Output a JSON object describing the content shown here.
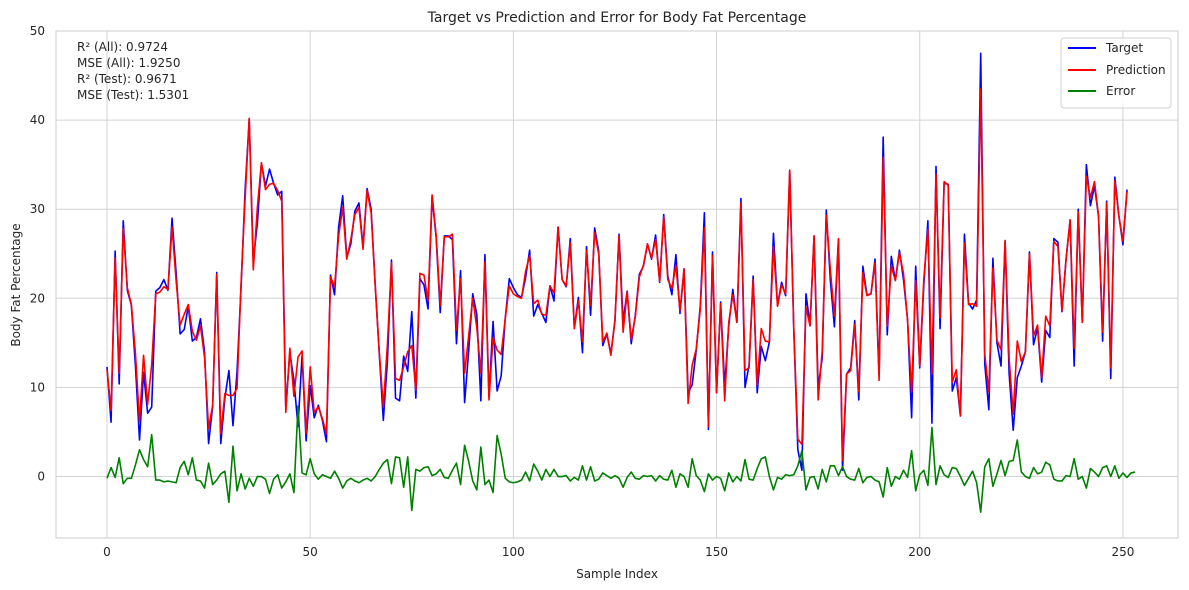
{
  "chart_data": {
    "type": "line",
    "title": "Target vs Prediction and Error for Body Fat Percentage",
    "xlabel": "Sample Index",
    "ylabel": "Body Fat Percentage",
    "xlim": [
      -12.55,
      263.55
    ],
    "ylim": [
      -6.9,
      50
    ],
    "xticks": [
      0,
      50,
      100,
      150,
      200,
      250
    ],
    "yticks": [
      0,
      10,
      20,
      30,
      40,
      50
    ],
    "grid": true,
    "legend_position": "top-right",
    "stats": [
      "R² (All): 0.9724",
      "MSE (All): 1.9250",
      "R² (Test): 0.9671",
      "MSE (Test): 1.5301"
    ],
    "x_start": 0,
    "series": [
      {
        "name": "Target",
        "color": "#0000ff",
        "values": [
          12.3,
          6.1,
          25.3,
          10.4,
          28.7,
          20.9,
          19.2,
          12.4,
          4.1,
          11.7,
          7.1,
          7.8,
          20.8,
          21.2,
          22.1,
          20.9,
          29.0,
          22.9,
          16.0,
          16.5,
          19.1,
          15.2,
          15.6,
          17.7,
          14.0,
          3.7,
          7.9,
          22.9,
          3.7,
          8.8,
          11.9,
          5.7,
          11.8,
          21.3,
          32.3,
          40.1,
          24.2,
          28.4,
          35.2,
          32.6,
          34.5,
          32.9,
          31.6,
          32.0,
          7.7,
          13.9,
          10.8,
          5.6,
          13.6,
          4.0,
          10.2,
          6.6,
          8.0,
          6.3,
          3.9,
          22.6,
          20.4,
          28.0,
          31.5,
          24.6,
          26.1,
          29.8,
          30.7,
          25.8,
          32.3,
          30.0,
          21.5,
          13.8,
          6.3,
          12.9,
          24.3,
          8.8,
          8.5,
          13.5,
          11.8,
          18.5,
          8.8,
          22.2,
          21.5,
          18.8,
          31.4,
          26.8,
          18.4,
          27.0,
          27.0,
          26.6,
          14.9,
          23.1,
          8.3,
          14.1,
          20.5,
          18.2,
          8.5,
          24.9,
          9.0,
          17.4,
          9.6,
          11.3,
          17.8,
          22.2,
          21.2,
          20.4,
          20.1,
          22.3,
          25.4,
          18.0,
          19.3,
          18.3,
          17.3,
          21.4,
          19.7,
          28.0,
          22.1,
          21.3,
          26.7,
          16.7,
          20.1,
          13.9,
          25.8,
          18.1,
          27.9,
          25.3,
          14.7,
          16.0,
          13.8,
          17.5,
          27.2,
          17.4,
          20.8,
          14.9,
          18.1,
          22.7,
          23.6,
          26.1,
          24.4,
          27.1,
          21.8,
          29.4,
          22.5,
          20.4,
          24.9,
          18.3,
          23.3,
          9.4,
          10.3,
          14.2,
          19.2,
          29.6,
          5.3,
          25.2,
          9.4,
          19.6,
          10.1,
          16.9,
          21.0,
          17.3,
          31.2,
          10.0,
          12.5,
          22.5,
          9.4,
          14.6,
          13.0,
          15.1,
          27.3,
          19.2,
          21.8,
          20.3,
          34.3,
          16.5,
          3.0,
          0.7,
          20.5,
          17.0,
          27.0,
          10.0,
          13.3,
          29.9,
          22.0,
          16.8,
          26.6,
          0.7,
          11.5,
          12.2,
          17.5,
          8.6,
          23.6,
          20.4,
          20.5,
          24.4,
          11.4,
          38.1,
          15.9,
          24.7,
          22.0,
          25.4,
          22.1,
          17.6,
          6.6,
          23.6,
          12.2,
          21.5,
          28.7,
          6.0,
          34.8,
          16.6,
          32.9,
          32.8,
          9.6,
          11.1,
          6.8,
          27.2,
          19.5,
          18.8,
          19.8,
          47.5,
          12.6,
          7.5,
          24.5,
          15.0,
          12.4,
          26.4,
          11.5,
          5.2,
          11.1,
          12.4,
          14.0,
          25.2,
          14.8,
          16.7,
          10.6,
          16.4,
          15.6,
          26.7,
          26.3,
          18.5,
          24.4,
          28.8,
          12.4,
          30.0,
          17.3,
          35.0,
          30.4,
          32.6,
          29.2,
          15.2,
          30.9,
          11.0,
          33.6,
          29.3,
          26.0,
          32.2
        ]
      },
      {
        "name": "Prediction",
        "color": "#ff0000",
        "values": [
          12.0,
          7.4,
          24.5,
          11.6,
          27.8,
          21.2,
          19.3,
          13.8,
          6.2,
          13.6,
          8.1,
          12.6,
          20.5,
          20.7,
          21.3,
          21.0,
          28.0,
          22.0,
          17.0,
          18.2,
          19.3,
          16.3,
          15.3,
          16.9,
          13.4,
          5.4,
          8.0,
          22.7,
          4.8,
          9.3,
          9.1,
          9.1,
          9.9,
          21.8,
          31.3,
          40.2,
          23.2,
          30.2,
          35.2,
          32.2,
          32.8,
          32.9,
          32.1,
          30.9,
          7.2,
          14.4,
          9.0,
          13.4,
          14.1,
          4.8,
          12.3,
          7.2,
          7.8,
          6.5,
          4.8,
          22.4,
          21.3,
          27.0,
          30.2,
          24.4,
          26.6,
          29.4,
          30.2,
          25.5,
          32.1,
          29.6,
          21.4,
          14.0,
          7.8,
          14.8,
          24.0,
          11.0,
          10.8,
          12.3,
          14.0,
          14.7,
          9.7,
          22.8,
          22.6,
          19.7,
          31.6,
          27.1,
          19.2,
          26.9,
          26.9,
          27.2,
          16.4,
          22.2,
          11.6,
          15.8,
          20.0,
          16.7,
          11.6,
          24.1,
          8.6,
          15.6,
          14.2,
          13.7,
          17.7,
          21.4,
          20.5,
          20.2,
          20.0,
          23.0,
          24.8,
          19.4,
          19.8,
          18.2,
          18.1,
          21.4,
          20.6,
          28.0,
          22.1,
          21.4,
          26.2,
          16.6,
          19.7,
          15.1,
          25.4,
          19.2,
          27.4,
          25.0,
          15.1,
          16.1,
          13.6,
          17.6,
          27.0,
          16.2,
          20.7,
          15.4,
          17.9,
          22.4,
          23.7,
          26.1,
          24.5,
          26.6,
          21.9,
          29.1,
          22.1,
          21.1,
          23.7,
          18.6,
          23.3,
          8.2,
          12.5,
          14.3,
          18.8,
          27.9,
          5.6,
          24.8,
          9.4,
          19.4,
          8.5,
          17.3,
          20.4,
          17.3,
          30.7,
          11.9,
          12.2,
          22.1,
          10.3,
          16.6,
          15.2,
          15.1,
          25.8,
          19.1,
          21.5,
          20.5,
          34.4,
          16.7,
          4.2,
          3.6,
          19.0,
          16.9,
          27.0,
          8.6,
          14.1,
          29.3,
          23.2,
          18.0,
          26.7,
          1.8,
          11.5,
          11.9,
          17.1,
          9.5,
          22.9,
          20.3,
          20.5,
          24.0,
          10.8,
          35.8,
          16.9,
          23.6,
          22.0,
          25.1,
          22.8,
          17.5,
          9.5,
          22.0,
          12.4,
          22.2,
          27.7,
          11.5,
          33.9,
          17.8,
          33.1,
          32.7,
          10.6,
          12.0,
          6.8,
          26.2,
          19.3,
          19.4,
          19.1,
          43.5,
          13.7,
          9.5,
          23.4,
          15.3,
          14.2,
          26.5,
          13.2,
          7.0,
          15.2,
          12.9,
          14.0,
          25.0,
          15.8,
          17.0,
          11.1,
          18.0,
          16.9,
          26.4,
          25.8,
          18.6,
          24.3,
          28.8,
          14.4,
          29.7,
          17.3,
          33.7,
          31.3,
          33.1,
          29.2,
          16.2,
          30.7,
          12.2,
          33.2,
          29.2,
          26.4,
          32.0
        ]
      },
      {
        "name": "Error",
        "color": "#008000",
        "values": [
          -0.2,
          1.0,
          -0.1,
          2.1,
          -0.8,
          -0.2,
          -0.2,
          1.3,
          3.0,
          1.9,
          1.1,
          4.7,
          -0.4,
          -0.4,
          -0.6,
          -0.5,
          -0.6,
          -0.7,
          1.0,
          1.7,
          0.2,
          2.1,
          -0.4,
          -0.5,
          -1.3,
          1.5,
          -0.9,
          -0.4,
          0.3,
          0.6,
          -2.9,
          3.4,
          -1.6,
          0.3,
          -1.4,
          -0.2,
          -1.1,
          0.0,
          0.0,
          -0.3,
          -1.9,
          -0.3,
          0.2,
          -1.3,
          -0.6,
          0.3,
          -1.8,
          7.9,
          0.4,
          0.2,
          2.0,
          0.3,
          -0.3,
          0.2,
          0.0,
          -0.2,
          0.6,
          -0.2,
          -1.3,
          -0.5,
          -0.2,
          -0.5,
          -0.7,
          -0.4,
          -0.2,
          -0.5,
          0.0,
          0.8,
          1.5,
          1.9,
          -0.8,
          2.2,
          2.1,
          -1.2,
          2.2,
          -3.8,
          0.8,
          0.6,
          1.0,
          1.1,
          0.1,
          0.3,
          0.8,
          -0.1,
          -0.2,
          0.7,
          1.5,
          -0.9,
          3.5,
          1.7,
          -0.5,
          -1.5,
          3.3,
          -0.9,
          -0.4,
          -1.8,
          4.6,
          2.5,
          -0.2,
          -0.6,
          -0.7,
          -0.6,
          -0.4,
          0.5,
          -0.5,
          1.4,
          0.6,
          -0.4,
          0.8,
          0.0,
          0.8,
          0.0,
          0.0,
          0.1,
          -0.5,
          -0.1,
          -0.4,
          1.2,
          -0.4,
          1.1,
          -0.5,
          -0.3,
          0.4,
          0.1,
          -0.2,
          0.1,
          -0.2,
          -1.2,
          -0.1,
          0.5,
          -0.2,
          -0.3,
          0.1,
          0.0,
          0.1,
          -0.5,
          0.1,
          -0.3,
          -0.4,
          0.7,
          -1.2,
          0.3,
          0.0,
          -1.2,
          2.0,
          0.1,
          -0.4,
          -1.7,
          0.3,
          -0.4,
          0.0,
          -0.2,
          -1.6,
          0.4,
          -0.6,
          0.0,
          -0.5,
          1.9,
          -0.3,
          -0.4,
          0.9,
          2.0,
          2.2,
          0.0,
          -1.5,
          -0.1,
          -0.3,
          0.2,
          0.1,
          0.2,
          1.2,
          2.9,
          -1.5,
          -0.1,
          0.0,
          -1.4,
          0.8,
          -0.6,
          1.2,
          1.2,
          0.1,
          1.1,
          0.0,
          -0.3,
          -0.4,
          0.9,
          -0.7,
          -0.1,
          0.0,
          -0.4,
          -0.6,
          -2.3,
          1.0,
          -1.1,
          0.0,
          -0.3,
          0.7,
          -0.1,
          2.9,
          -1.6,
          0.2,
          0.7,
          -1.0,
          5.5,
          -0.9,
          1.2,
          0.2,
          -0.1,
          1.0,
          0.9,
          0.0,
          -1.0,
          -0.2,
          0.6,
          -0.7,
          -4.0,
          1.1,
          2.0,
          -1.1,
          0.3,
          1.8,
          0.1,
          1.7,
          1.8,
          4.1,
          0.5,
          0.0,
          -0.2,
          1.0,
          0.3,
          0.5,
          1.6,
          1.3,
          -0.3,
          -0.5,
          -0.5,
          0.1,
          0.0,
          2.0,
          -0.3,
          0.0,
          -1.3,
          0.9,
          0.5,
          0.0,
          1.0,
          1.2,
          0.0,
          1.2,
          -0.2,
          0.4,
          -0.1,
          0.4,
          0.5
        ]
      }
    ]
  }
}
